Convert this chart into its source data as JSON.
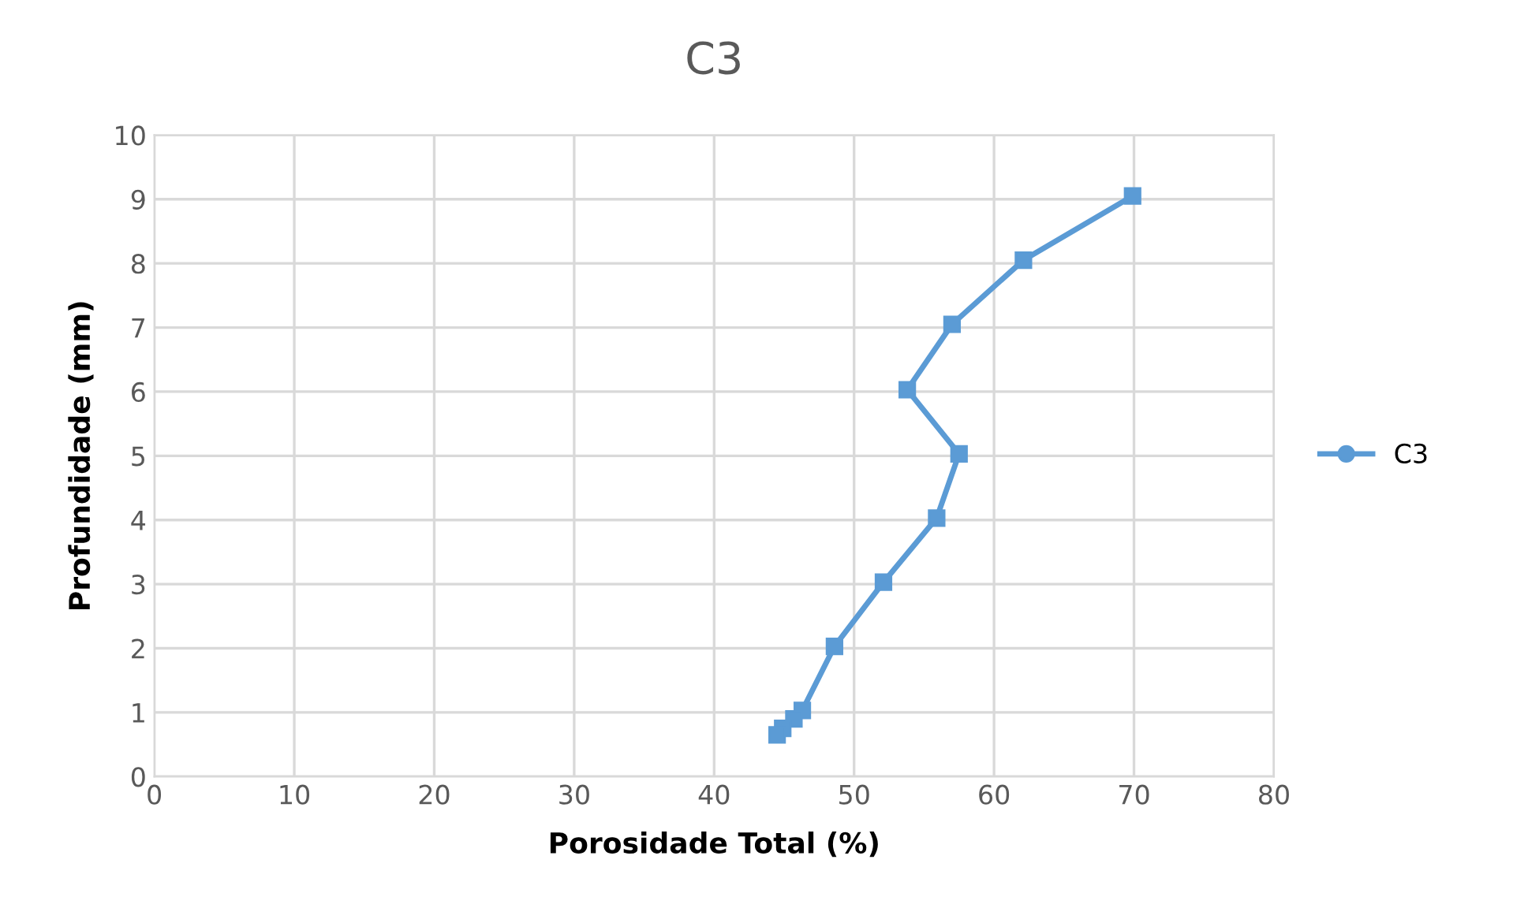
{
  "chart_data": {
    "type": "line",
    "title": "C3",
    "xlabel": "Porosidade Total (%)",
    "ylabel": "Profundidade (mm)",
    "xlim": [
      0,
      80
    ],
    "xticks": [
      0,
      10,
      20,
      30,
      40,
      50,
      60,
      70,
      80
    ],
    "ylim": [
      0,
      10
    ],
    "yticks": [
      0,
      1,
      2,
      3,
      4,
      5,
      6,
      7,
      8,
      9,
      10
    ],
    "grid": true,
    "legend": "right",
    "marker": "square",
    "line_style": "solid",
    "series": [
      {
        "name": "C3",
        "color": "#5b9bd5",
        "x": [
          69.9,
          62.1,
          57.0,
          53.8,
          57.5,
          55.9,
          52.1,
          48.6,
          46.3,
          45.7,
          44.9,
          44.5
        ],
        "values": [
          9.05,
          8.05,
          7.05,
          6.03,
          5.03,
          4.03,
          3.03,
          2.03,
          1.03,
          0.9,
          0.75,
          0.65
        ]
      }
    ]
  }
}
